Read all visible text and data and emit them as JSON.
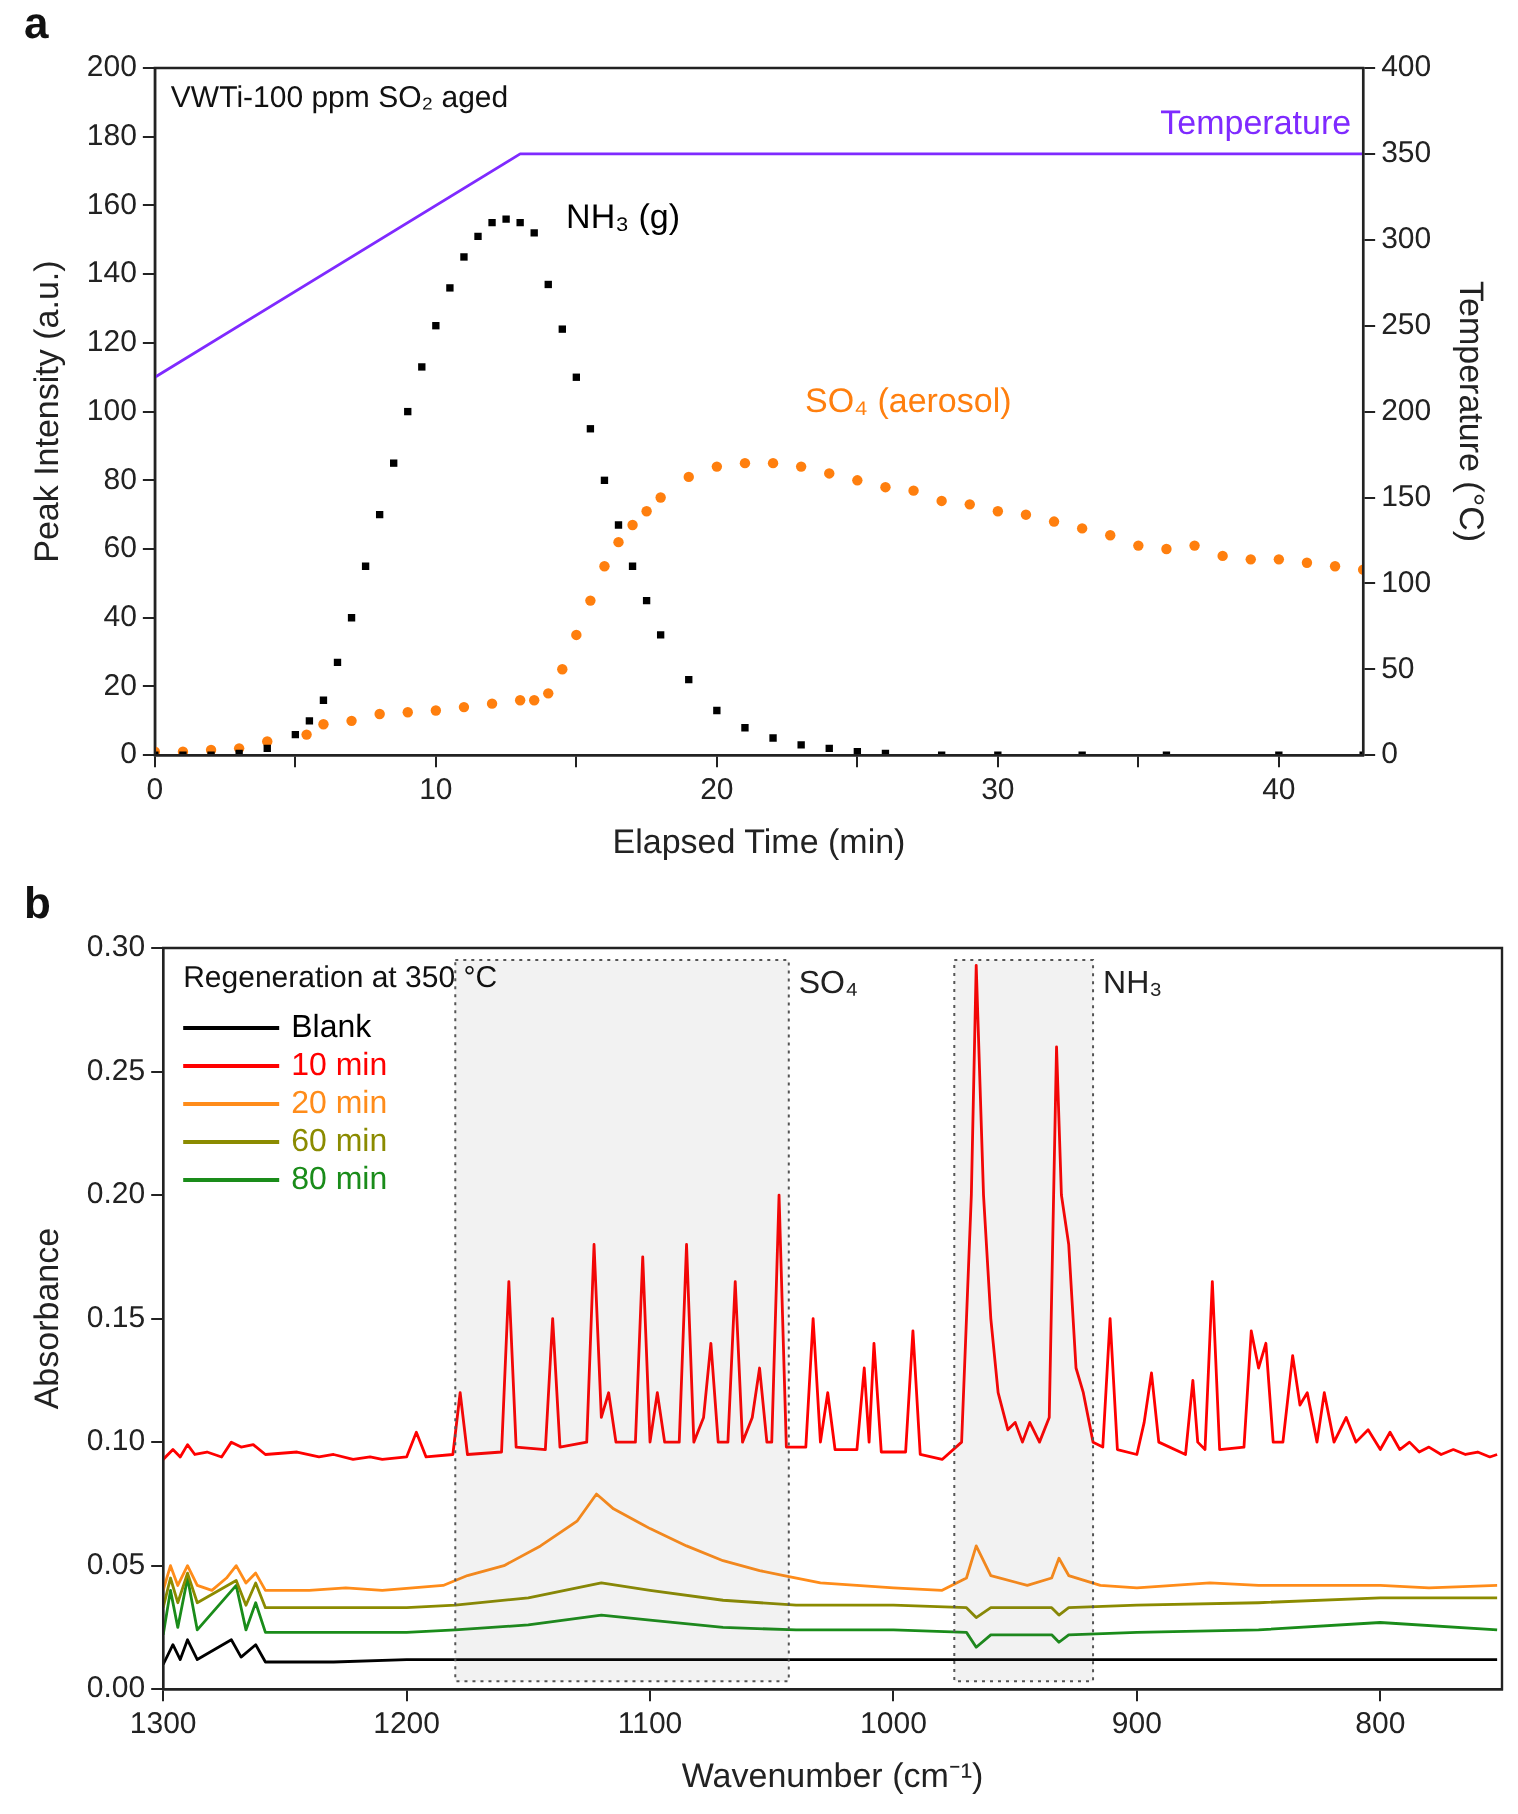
{
  "chart_data": [
    {
      "type": "scatter",
      "annotations": [
        "a",
        "VWTi-100 ppm SO₂ aged"
      ],
      "xlabel": "Elapsed Time (min)",
      "ylabel": "Peak Intensity (a.u.)",
      "y2label": "Temperature (°C)",
      "xlim": [
        0,
        43
      ],
      "xticks": [
        0,
        {
          "value": 5,
          "label": null
        },
        10,
        {
          "value": 15,
          "label": null
        },
        20,
        {
          "value": 25,
          "label": null
        },
        30,
        {
          "value": 35,
          "label": null
        },
        40
      ],
      "ylim": [
        0,
        200
      ],
      "yticks": [
        0,
        20,
        40,
        60,
        80,
        100,
        120,
        140,
        160,
        180,
        200
      ],
      "y2lim": [
        0,
        400
      ],
      "y2ticks": [
        0,
        50,
        100,
        150,
        200,
        250,
        300,
        350,
        400
      ],
      "grid": false,
      "legend": false,
      "series": [
        {
          "name": "NH₃ (g)",
          "type": "scatter",
          "marker": "square",
          "color": "#000000",
          "x": [
            0,
            1,
            2,
            3,
            4,
            5,
            5.5,
            6,
            6.5,
            7,
            7.5,
            8,
            8.5,
            9,
            9.5,
            10,
            10.5,
            11,
            11.5,
            12,
            12.5,
            13,
            13.5,
            14,
            14.5,
            15,
            15.5,
            16,
            16.5,
            17,
            17.5,
            18,
            19,
            20,
            21,
            22,
            23,
            24,
            25,
            26,
            28,
            30,
            33,
            36,
            40,
            43
          ],
          "values": [
            0,
            0,
            0,
            0.5,
            2,
            6,
            10,
            16,
            27,
            40,
            55,
            70,
            85,
            100,
            113,
            125,
            136,
            145,
            151,
            155,
            156,
            155,
            152,
            137,
            124,
            110,
            95,
            80,
            67,
            55,
            45,
            35,
            22,
            13,
            8,
            5,
            3,
            2,
            1,
            0.5,
            0,
            0,
            0,
            0,
            0,
            0
          ]
        },
        {
          "name": "SO₄ (aerosol)",
          "type": "scatter",
          "marker": "circle",
          "color": "#ff7f0e",
          "x": [
            0,
            1,
            2,
            3,
            4,
            5.4,
            6,
            7,
            8,
            9,
            10,
            11,
            12,
            13,
            13.5,
            14,
            14.5,
            15,
            15.5,
            16,
            16.5,
            17,
            17.5,
            18,
            19,
            20,
            21,
            22,
            23,
            24,
            25,
            26,
            27,
            28,
            29,
            30,
            31,
            32,
            33,
            34,
            35,
            36,
            37,
            38,
            39,
            40,
            41,
            42,
            43
          ],
          "values": [
            1,
            1,
            1.5,
            2,
            4,
            6,
            9,
            10,
            12,
            12.5,
            13,
            14,
            15,
            16,
            16,
            18,
            25,
            35,
            45,
            55,
            62,
            67,
            71,
            75,
            81,
            84,
            85,
            85,
            84,
            82,
            80,
            78,
            77,
            74,
            73,
            71,
            70,
            68,
            66,
            64,
            61,
            60,
            61,
            58,
            57,
            57,
            56,
            55,
            54
          ]
        },
        {
          "name": "Temperature",
          "type": "line",
          "marker": "none",
          "axis": "y2",
          "color": "#7f2aff",
          "x": [
            0,
            13,
            43
          ],
          "values": [
            220,
            350,
            350
          ]
        }
      ]
    },
    {
      "type": "line",
      "annotations": [
        "b"
      ],
      "legend_title": "Regeneration at 350 °C",
      "xlabel": "Wavenumber (cm⁻¹)",
      "ylabel": "Absorbance",
      "xlim": [
        1300,
        750
      ],
      "xticks": [
        1300,
        1200,
        1100,
        1000,
        900,
        800
      ],
      "ylim": [
        0,
        0.3
      ],
      "yticks": [
        {
          "value": 0,
          "label": "0.00"
        },
        {
          "value": 0.05,
          "label": "0.05"
        },
        {
          "value": 0.1,
          "label": "0.10"
        },
        {
          "value": 0.15,
          "label": "0.15"
        },
        {
          "value": 0.2,
          "label": "0.20"
        },
        {
          "value": 0.25,
          "label": "0.25"
        },
        {
          "value": 0.3,
          "label": "0.30"
        }
      ],
      "grid": false,
      "legend": "top left",
      "bands": [
        {
          "axis": "x",
          "from": 975,
          "to": 918,
          "label": "NH₃",
          "color": "#555555"
        },
        {
          "axis": "x",
          "from": 1180,
          "to": 1043,
          "label": "SO₄",
          "color": "#555555"
        }
      ],
      "series": [
        {
          "name": "Blank",
          "color": "#000000",
          "x": [
            1300,
            1296,
            1293,
            1290,
            1286,
            1272,
            1268,
            1262,
            1258,
            1230,
            1200,
            1100,
            1000,
            900,
            800,
            752
          ],
          "values": [
            0.01,
            0.018,
            0.012,
            0.02,
            0.012,
            0.02,
            0.013,
            0.018,
            0.011,
            0.011,
            0.012,
            0.012,
            0.012,
            0.012,
            0.012,
            0.012
          ]
        },
        {
          "name": "10 min",
          "color": "#ff0000",
          "x": [
            1300,
            1296,
            1293,
            1290,
            1287,
            1282,
            1276,
            1272,
            1268,
            1263,
            1258,
            1245,
            1236,
            1230,
            1222,
            1215,
            1210,
            1200,
            1196,
            1192,
            1181,
            1178,
            1175,
            1161,
            1158,
            1155,
            1143,
            1140,
            1137,
            1126,
            1123,
            1120,
            1117,
            1114,
            1106,
            1103,
            1100,
            1097,
            1094,
            1088,
            1085,
            1082,
            1078,
            1075,
            1072,
            1068,
            1065,
            1062,
            1058,
            1055,
            1052,
            1050,
            1047,
            1044,
            1036,
            1033,
            1030,
            1027,
            1024,
            1015,
            1012,
            1010,
            1008,
            1005,
            995,
            992,
            989,
            980,
            972,
            968,
            966,
            963,
            960,
            957,
            953,
            950,
            947,
            944,
            940,
            936,
            933,
            931,
            928,
            925,
            922,
            918,
            914,
            911,
            908,
            900,
            897,
            894,
            891,
            880,
            877,
            875,
            872,
            869,
            866,
            856,
            853,
            850,
            847,
            844,
            840,
            836,
            833,
            830,
            826,
            823,
            819,
            814,
            810,
            805,
            800,
            796,
            792,
            788,
            784,
            780,
            775,
            770,
            765,
            760,
            755,
            752
          ],
          "values": [
            0.093,
            0.097,
            0.094,
            0.099,
            0.095,
            0.096,
            0.094,
            0.1,
            0.098,
            0.099,
            0.095,
            0.096,
            0.094,
            0.095,
            0.093,
            0.094,
            0.093,
            0.094,
            0.104,
            0.094,
            0.095,
            0.12,
            0.095,
            0.096,
            0.165,
            0.098,
            0.097,
            0.15,
            0.098,
            0.1,
            0.18,
            0.11,
            0.12,
            0.1,
            0.1,
            0.175,
            0.1,
            0.12,
            0.1,
            0.1,
            0.18,
            0.1,
            0.11,
            0.14,
            0.1,
            0.1,
            0.165,
            0.1,
            0.11,
            0.13,
            0.1,
            0.1,
            0.2,
            0.098,
            0.098,
            0.15,
            0.1,
            0.12,
            0.097,
            0.097,
            0.13,
            0.1,
            0.14,
            0.096,
            0.096,
            0.145,
            0.095,
            0.093,
            0.1,
            0.2,
            0.293,
            0.2,
            0.15,
            0.12,
            0.105,
            0.108,
            0.1,
            0.108,
            0.1,
            0.11,
            0.26,
            0.2,
            0.18,
            0.13,
            0.12,
            0.1,
            0.098,
            0.15,
            0.097,
            0.095,
            0.108,
            0.128,
            0.1,
            0.095,
            0.125,
            0.1,
            0.097,
            0.165,
            0.097,
            0.098,
            0.145,
            0.13,
            0.14,
            0.1,
            0.1,
            0.135,
            0.115,
            0.12,
            0.1,
            0.12,
            0.1,
            0.11,
            0.1,
            0.105,
            0.097,
            0.104,
            0.097,
            0.1,
            0.096,
            0.098,
            0.095,
            0.097,
            0.095,
            0.096,
            0.094,
            0.095
          ]
        },
        {
          "name": "20 min",
          "color": "#ff8c1a",
          "x": [
            1300,
            1297,
            1294,
            1290,
            1286,
            1280,
            1274,
            1270,
            1266,
            1262,
            1258,
            1240,
            1225,
            1210,
            1185,
            1175,
            1160,
            1145,
            1130,
            1122,
            1115,
            1100,
            1085,
            1070,
            1055,
            1045,
            1030,
            1000,
            980,
            970,
            966,
            960,
            945,
            935,
            932,
            928,
            915,
            900,
            870,
            850,
            800,
            780,
            752
          ],
          "values": [
            0.04,
            0.05,
            0.042,
            0.05,
            0.042,
            0.04,
            0.045,
            0.05,
            0.043,
            0.047,
            0.04,
            0.04,
            0.041,
            0.04,
            0.042,
            0.046,
            0.05,
            0.058,
            0.068,
            0.079,
            0.073,
            0.065,
            0.058,
            0.052,
            0.048,
            0.046,
            0.043,
            0.041,
            0.04,
            0.045,
            0.058,
            0.046,
            0.042,
            0.045,
            0.053,
            0.046,
            0.042,
            0.041,
            0.043,
            0.042,
            0.042,
            0.041,
            0.042
          ]
        },
        {
          "name": "60 min",
          "color": "#8b8b00",
          "x": [
            1300,
            1297,
            1294,
            1290,
            1286,
            1270,
            1266,
            1262,
            1258,
            1230,
            1200,
            1180,
            1150,
            1120,
            1100,
            1070,
            1040,
            1000,
            970,
            966,
            960,
            935,
            932,
            928,
            900,
            850,
            800,
            752
          ],
          "values": [
            0.033,
            0.045,
            0.035,
            0.047,
            0.035,
            0.044,
            0.034,
            0.043,
            0.033,
            0.033,
            0.033,
            0.034,
            0.037,
            0.043,
            0.04,
            0.036,
            0.034,
            0.034,
            0.033,
            0.029,
            0.033,
            0.033,
            0.03,
            0.033,
            0.034,
            0.035,
            0.037,
            0.037
          ]
        },
        {
          "name": "80 min",
          "color": "#1a8c1a",
          "x": [
            1300,
            1297,
            1294,
            1290,
            1286,
            1270,
            1266,
            1262,
            1258,
            1230,
            1200,
            1180,
            1150,
            1120,
            1100,
            1070,
            1040,
            1000,
            970,
            966,
            960,
            935,
            932,
            928,
            900,
            850,
            800,
            752
          ],
          "values": [
            0.022,
            0.04,
            0.025,
            0.045,
            0.024,
            0.042,
            0.024,
            0.035,
            0.023,
            0.023,
            0.023,
            0.024,
            0.026,
            0.03,
            0.028,
            0.025,
            0.024,
            0.024,
            0.023,
            0.017,
            0.022,
            0.022,
            0.019,
            0.022,
            0.023,
            0.024,
            0.027,
            0.024
          ]
        }
      ]
    }
  ]
}
